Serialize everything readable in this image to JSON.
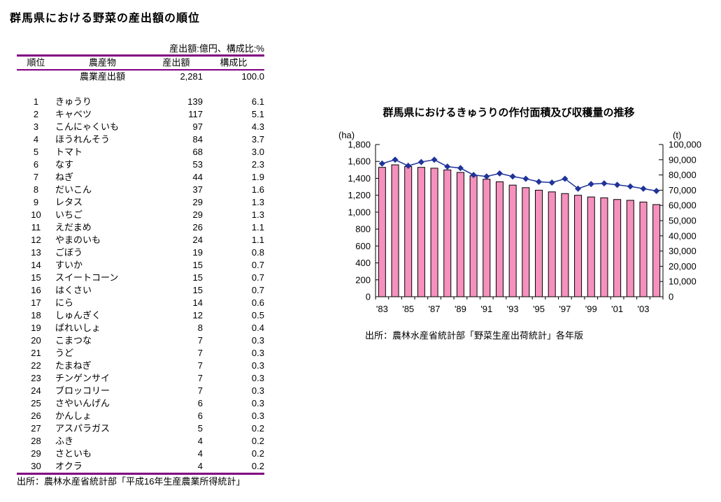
{
  "rules": {
    "color": "#800080"
  },
  "left_table": {
    "title": "群馬県における野菜の産出額の順位",
    "unit_note": "産出額:億円、構成比:%",
    "columns": [
      "順位",
      "農産物",
      "産出額",
      "構成比"
    ],
    "total_row": {
      "rank": "",
      "name": "農業産出額",
      "value": "2,281",
      "share": "100.0"
    },
    "rows": [
      {
        "rank": "1",
        "name": "きゅうり",
        "value": "139",
        "share": "6.1"
      },
      {
        "rank": "2",
        "name": "キャベツ",
        "value": "117",
        "share": "5.1"
      },
      {
        "rank": "3",
        "name": "こんにゃくいも",
        "value": "97",
        "share": "4.3"
      },
      {
        "rank": "4",
        "name": "ほうれんそう",
        "value": "84",
        "share": "3.7"
      },
      {
        "rank": "5",
        "name": "トマト",
        "value": "68",
        "share": "3.0"
      },
      {
        "rank": "6",
        "name": "なす",
        "value": "53",
        "share": "2.3"
      },
      {
        "rank": "7",
        "name": "ねぎ",
        "value": "44",
        "share": "1.9"
      },
      {
        "rank": "8",
        "name": "だいこん",
        "value": "37",
        "share": "1.6"
      },
      {
        "rank": "9",
        "name": "レタス",
        "value": "29",
        "share": "1.3"
      },
      {
        "rank": "10",
        "name": "いちご",
        "value": "29",
        "share": "1.3"
      },
      {
        "rank": "11",
        "name": "えだまめ",
        "value": "26",
        "share": "1.1"
      },
      {
        "rank": "12",
        "name": "やまのいも",
        "value": "24",
        "share": "1.1"
      },
      {
        "rank": "13",
        "name": "ごぼう",
        "value": "19",
        "share": "0.8"
      },
      {
        "rank": "14",
        "name": "すいか",
        "value": "15",
        "share": "0.7"
      },
      {
        "rank": "15",
        "name": "スイートコーン",
        "value": "15",
        "share": "0.7"
      },
      {
        "rank": "16",
        "name": "はくさい",
        "value": "15",
        "share": "0.7"
      },
      {
        "rank": "17",
        "name": "にら",
        "value": "14",
        "share": "0.6"
      },
      {
        "rank": "18",
        "name": "しゅんぎく",
        "value": "12",
        "share": "0.5"
      },
      {
        "rank": "19",
        "name": "ばれいしょ",
        "value": "8",
        "share": "0.4"
      },
      {
        "rank": "20",
        "name": "こまつな",
        "value": "7",
        "share": "0.3"
      },
      {
        "rank": "21",
        "name": "うど",
        "value": "7",
        "share": "0.3"
      },
      {
        "rank": "22",
        "name": "たまねぎ",
        "value": "7",
        "share": "0.3"
      },
      {
        "rank": "23",
        "name": "チンゲンサイ",
        "value": "7",
        "share": "0.3"
      },
      {
        "rank": "24",
        "name": "ブロッコリー",
        "value": "7",
        "share": "0.3"
      },
      {
        "rank": "25",
        "name": "さやいんげん",
        "value": "6",
        "share": "0.3"
      },
      {
        "rank": "26",
        "name": "かんしょ",
        "value": "6",
        "share": "0.3"
      },
      {
        "rank": "27",
        "name": "アスパラガス",
        "value": "5",
        "share": "0.2"
      },
      {
        "rank": "28",
        "name": "ふき",
        "value": "4",
        "share": "0.2"
      },
      {
        "rank": "29",
        "name": "さといも",
        "value": "4",
        "share": "0.2"
      },
      {
        "rank": "30",
        "name": "オクラ",
        "value": "4",
        "share": "0.2"
      }
    ],
    "source": "出所：農林水産省統計部「平成16年生産農業所得統計」"
  },
  "chart": {
    "title": "群馬県におけるきゅうりの作付面積及び収穫量の推移",
    "left_axis_unit": "(ha)",
    "right_axis_unit": "(t)",
    "source": "出所：農林水産省統計部「野菜生産出荷統計」各年版",
    "colors": {
      "bar_fill": "#F591BC",
      "bar_stroke": "#000000",
      "line": "#1F3399"
    }
  },
  "chart_data": {
    "type": "bar",
    "title": "群馬県におけるきゅうりの作付面積及び収穫量の推移",
    "x": [
      1983,
      1984,
      1985,
      1986,
      1987,
      1988,
      1989,
      1990,
      1991,
      1992,
      1993,
      1994,
      1995,
      1996,
      1997,
      1998,
      1999,
      2000,
      2001,
      2002,
      2003,
      2004
    ],
    "x_tick_labels": [
      "'83",
      "'85",
      "'87",
      "'89",
      "'91",
      "'93",
      "'95",
      "'97",
      "'99",
      "'01",
      "'03"
    ],
    "series": [
      {
        "name": "作付面積",
        "type": "bar",
        "axis": "left",
        "unit": "ha",
        "values": [
          1530,
          1560,
          1540,
          1530,
          1520,
          1500,
          1470,
          1430,
          1390,
          1360,
          1320,
          1290,
          1260,
          1240,
          1220,
          1200,
          1180,
          1170,
          1150,
          1140,
          1120,
          1090
        ]
      },
      {
        "name": "収穫量",
        "type": "line",
        "axis": "right",
        "unit": "t",
        "values": [
          87500,
          90000,
          86000,
          88500,
          90000,
          85500,
          84500,
          80000,
          79000,
          81000,
          79000,
          77500,
          75500,
          75000,
          77500,
          71000,
          74000,
          74500,
          73500,
          72500,
          71000,
          69500
        ]
      }
    ],
    "left_ylim": [
      0,
      1800
    ],
    "left_ytick_step": 200,
    "right_ylim": [
      0,
      100000
    ],
    "right_ytick_step": 10000,
    "grid": false,
    "legend": "none"
  }
}
